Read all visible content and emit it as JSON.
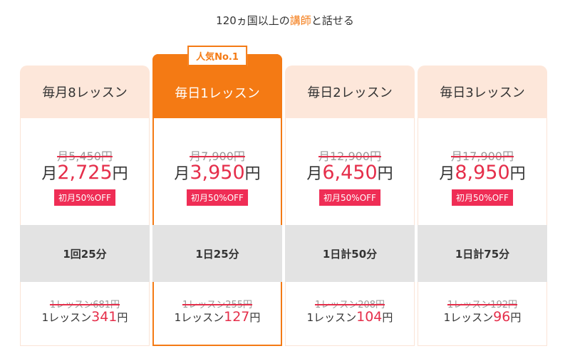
{
  "headline": {
    "prefix": "120ヵ国以上の",
    "highlight": "講師",
    "suffix": "と話せる"
  },
  "popular_tag": "人気No.1",
  "plans": [
    {
      "name": "毎月8レッスン",
      "old_price": "月5,450円",
      "price_prefix": "月",
      "price_value": "2,725",
      "price_suffix": "円",
      "discount_badge": "初月50%OFF",
      "frequency": "1回25分",
      "old_per_lesson": "1レッスン681円",
      "per_lesson_prefix": "1レッスン",
      "per_lesson_value": "341",
      "per_lesson_suffix": "円",
      "featured": false
    },
    {
      "name": "毎日1レッスン",
      "old_price": "月7,900円",
      "price_prefix": "月",
      "price_value": "3,950",
      "price_suffix": "円",
      "discount_badge": "初月50%OFF",
      "frequency": "1日25分",
      "old_per_lesson": "1レッスン255円",
      "per_lesson_prefix": "1レッスン",
      "per_lesson_value": "127",
      "per_lesson_suffix": "円",
      "featured": true
    },
    {
      "name": "毎日2レッスン",
      "old_price": "月12,900円",
      "price_prefix": "月",
      "price_value": "6,450",
      "price_suffix": "円",
      "discount_badge": "初月50%OFF",
      "frequency": "1日計50分",
      "old_per_lesson": "1レッスン208円",
      "per_lesson_prefix": "1レッスン",
      "per_lesson_value": "104",
      "per_lesson_suffix": "円",
      "featured": false
    },
    {
      "name": "毎日3レッスン",
      "old_price": "月17,900円",
      "price_prefix": "月",
      "price_value": "8,950",
      "price_suffix": "円",
      "discount_badge": "初月50%OFF",
      "frequency": "1日計75分",
      "old_per_lesson": "1レッスン192円",
      "per_lesson_prefix": "1レッスン",
      "per_lesson_value": "96",
      "per_lesson_suffix": "円",
      "featured": false
    }
  ],
  "colors": {
    "accent": "#f47a14",
    "header_bg": "#fde7da",
    "price_red": "#e52e4a",
    "badge_bg": "#ef2d55",
    "frequency_bg": "#e3e3e3"
  }
}
